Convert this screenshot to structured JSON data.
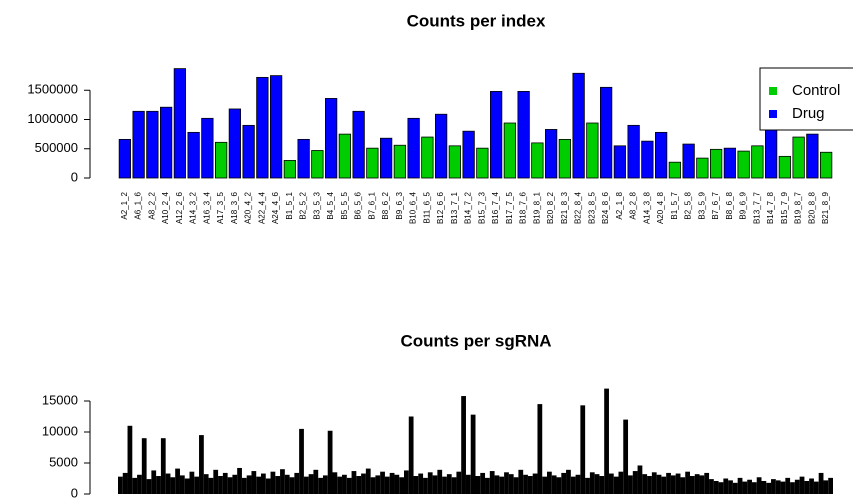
{
  "chart_data": [
    {
      "type": "bar",
      "title": "Counts per index",
      "categories": [
        "A2_1_2",
        "A6_1_6",
        "A8_2_2",
        "A10_2_4",
        "A12_2_6",
        "A14_3_2",
        "A16_3_4",
        "A17_3_5",
        "A18_3_6",
        "A20_4_2",
        "A22_4_4",
        "A24_4_6",
        "B1_5_1",
        "B2_5_2",
        "B3_5_3",
        "B4_5_4",
        "B5_5_5",
        "B6_5_6",
        "B7_6_1",
        "B8_6_2",
        "B9_6_3",
        "B10_6_4",
        "B11_6_5",
        "B12_6_6",
        "B13_7_1",
        "B14_7_2",
        "B15_7_3",
        "B16_7_4",
        "B17_7_5",
        "B18_7_6",
        "B19_8_1",
        "B20_8_2",
        "B21_8_3",
        "B22_8_4",
        "B23_8_5",
        "B24_8_6",
        "A2_1_8",
        "A8_2_8",
        "A14_3_8",
        "A20_4_8",
        "B1_5_7",
        "B2_5_8",
        "B3_5_9",
        "B7_6_7",
        "B8_6_8",
        "B9_6_9",
        "B13_7_7",
        "B14_7_8",
        "B15_7_9",
        "B19_8_7",
        "B20_8_8",
        "B21_8_9"
      ],
      "series": [
        {
          "name": "Control",
          "color": "#00cd00",
          "values": [
            null,
            null,
            null,
            null,
            null,
            null,
            null,
            610000,
            null,
            null,
            null,
            null,
            300000,
            null,
            470000,
            null,
            750000,
            null,
            510000,
            null,
            560000,
            null,
            700000,
            null,
            550000,
            null,
            510000,
            null,
            940000,
            null,
            600000,
            null,
            660000,
            null,
            940000,
            null,
            null,
            null,
            null,
            null,
            270000,
            null,
            340000,
            490000,
            null,
            460000,
            550000,
            null,
            370000,
            700000,
            null,
            440000
          ]
        },
        {
          "name": "Drug",
          "color": "#0000ff",
          "values": [
            660000,
            1140000,
            1140000,
            1210000,
            1870000,
            780000,
            1020000,
            null,
            1180000,
            900000,
            1720000,
            1750000,
            null,
            660000,
            null,
            1360000,
            null,
            1140000,
            null,
            680000,
            null,
            1020000,
            null,
            1090000,
            null,
            800000,
            null,
            1480000,
            null,
            1480000,
            null,
            830000,
            null,
            1790000,
            null,
            1550000,
            550000,
            900000,
            630000,
            780000,
            null,
            580000,
            null,
            null,
            510000,
            null,
            null,
            850000,
            null,
            null,
            750000,
            null
          ]
        }
      ],
      "ylim": [
        0,
        2000000
      ],
      "yticks": [
        0,
        500000,
        1000000,
        1500000
      ],
      "legend": "topright"
    },
    {
      "type": "bar",
      "title": "Counts per sgRNA",
      "color": "#000000",
      "values": [
        2800,
        3400,
        11000,
        2600,
        3100,
        9000,
        2400,
        3800,
        2900,
        9000,
        3300,
        2700,
        4100,
        3000,
        2500,
        3600,
        2800,
        9500,
        3200,
        2600,
        3900,
        2900,
        3400,
        2700,
        3100,
        4200,
        2600,
        3000,
        3700,
        2800,
        3300,
        2500,
        3600,
        2900,
        4000,
        3100,
        2700,
        3400,
        10500,
        2800,
        3200,
        3900,
        2600,
        3000,
        10200,
        3500,
        2800,
        3100,
        2600,
        3700,
        2900,
        3300,
        4100,
        2700,
        3000,
        3600,
        2800,
        3400,
        3100,
        2700,
        3800,
        12500,
        2900,
        3300,
        2600,
        3500,
        3000,
        3900,
        2800,
        3200,
        2700,
        3600,
        15800,
        3100,
        12800,
        2900,
        3400,
        2600,
        3700,
        3000,
        2800,
        3500,
        3200,
        2700,
        3900,
        3100,
        2900,
        3300,
        14500,
        2800,
        3600,
        3000,
        2700,
        3400,
        3900,
        2800,
        3100,
        14300,
        2600,
        3500,
        3200,
        2900,
        17000,
        3300,
        2800,
        3600,
        12000,
        3000,
        3700,
        4600,
        3200,
        2900,
        3500,
        3100,
        2800,
        3400,
        3000,
        3300,
        2700,
        3600,
        2900,
        3200,
        3000,
        3400,
        2400,
        2100,
        1900,
        2500,
        2200,
        1800,
        2600,
        2000,
        2300,
        1900,
        2700,
        2100,
        1800,
        2400,
        2200,
        2000,
        2600,
        1900,
        2300,
        2800,
        2100,
        2500,
        2000,
        3400,
        2200,
        2600
      ],
      "ylim": [
        0,
        17500
      ],
      "yticks": [
        0,
        5000,
        10000,
        15000
      ]
    }
  ]
}
